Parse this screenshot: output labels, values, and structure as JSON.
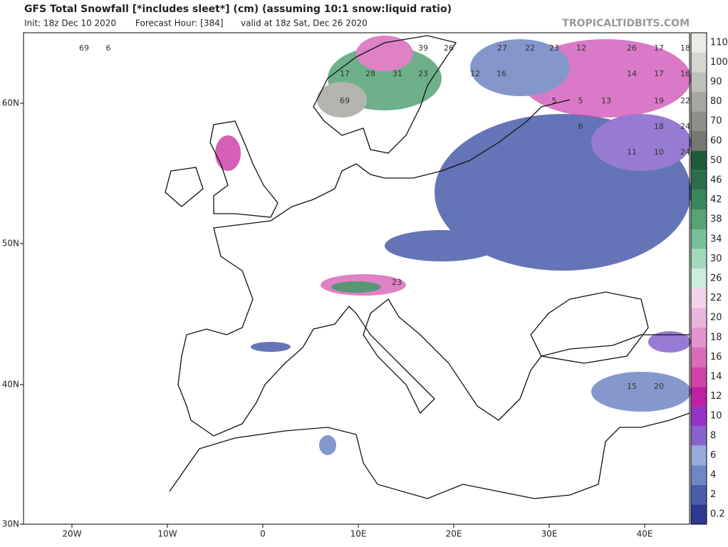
{
  "header": {
    "title": "GFS Total Snowfall [*includes sleet*] (cm) (assuming 10:1 snow:liquid ratio)",
    "init": "Init: 18z Dec 10 2020",
    "forecast_hour": "Forecast Hour: [384]",
    "valid": "valid at 18z Sat, Dec 26 2020",
    "credit": "TROPICALTIDBITS.COM"
  },
  "map": {
    "lat_labels": [
      "60N",
      "50N",
      "40N",
      "30N"
    ],
    "lon_labels": [
      "20W",
      "10W",
      "0",
      "10E",
      "20E",
      "30E",
      "40E"
    ],
    "point_labels": [
      "69",
      "6",
      "39",
      "26",
      "27",
      "22",
      "23",
      "12",
      "26",
      "17",
      "18",
      "17",
      "28",
      "31",
      "23",
      "12",
      "16",
      "14",
      "17",
      "16",
      "69",
      "5",
      "5",
      "13",
      "19",
      "22",
      "6",
      "18",
      "24",
      "11",
      "10",
      "24",
      "23",
      "15",
      "20"
    ]
  },
  "colorbar": {
    "levels": [
      {
        "value": 110,
        "color": "#ececE6"
      },
      {
        "value": 100,
        "color": "#d6d6d0"
      },
      {
        "value": 90,
        "color": "#c0c0ba"
      },
      {
        "value": 80,
        "color": "#a8a8a2"
      },
      {
        "value": 70,
        "color": "#90908a"
      },
      {
        "value": 60,
        "color": "#787872"
      },
      {
        "value": 50,
        "color": "#1f5a3a"
      },
      {
        "value": 46,
        "color": "#2c6e4c"
      },
      {
        "value": 42,
        "color": "#3b855e"
      },
      {
        "value": 38,
        "color": "#55a376"
      },
      {
        "value": 34,
        "color": "#78bf98"
      },
      {
        "value": 30,
        "color": "#a2d8bb"
      },
      {
        "value": 26,
        "color": "#cbecdb"
      },
      {
        "value": 22,
        "color": "#f2d4ea"
      },
      {
        "value": 20,
        "color": "#eab4dc"
      },
      {
        "value": 18,
        "color": "#e394cc"
      },
      {
        "value": 16,
        "color": "#da6cbc"
      },
      {
        "value": 14,
        "color": "#d044aa"
      },
      {
        "value": 12,
        "color": "#c020a2"
      },
      {
        "value": 10,
        "color": "#9434c4"
      },
      {
        "value": 8,
        "color": "#8664cc"
      },
      {
        "value": 6,
        "color": "#98aadc"
      },
      {
        "value": 4,
        "color": "#6e86c4"
      },
      {
        "value": 2,
        "color": "#4a5caa"
      },
      {
        "value": 0.2,
        "color": "#2f3890"
      }
    ]
  }
}
